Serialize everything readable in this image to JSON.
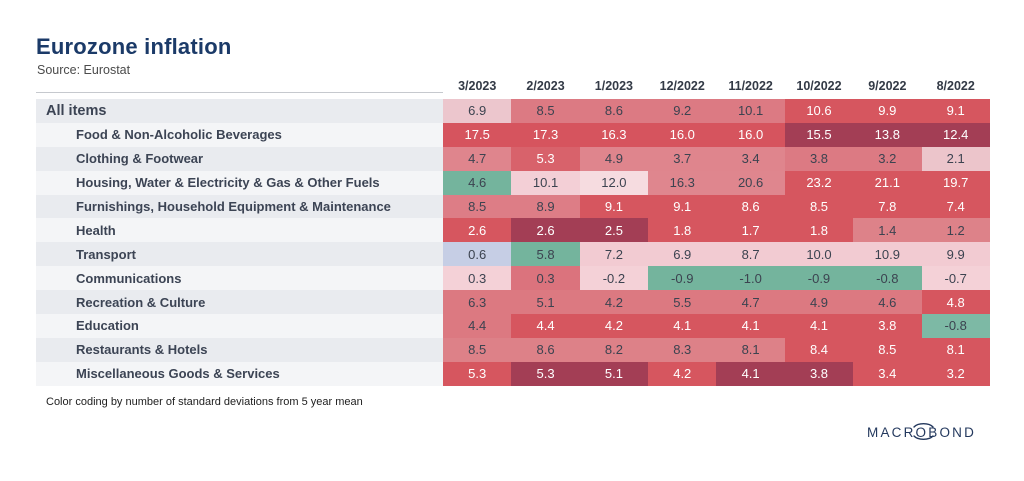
{
  "title": "Eurozone inflation",
  "source": "Source: Eurostat",
  "footnote": "Color coding by number of standard deviations from 5 year mean",
  "logo": {
    "text": "MACROBOND",
    "color": "#24395e"
  },
  "colors": {
    "text_dark": "#3c4350",
    "text_light": "#ffffff",
    "title": "#1b3a68"
  },
  "columns": [
    "3/2023",
    "2/2023",
    "1/2023",
    "12/2022",
    "11/2022",
    "10/2022",
    "9/2022",
    "8/2022"
  ],
  "rows": [
    {
      "label": "All items",
      "top": true,
      "values": [
        "6.9",
        "8.5",
        "8.6",
        "9.2",
        "10.1",
        "10.6",
        "9.9",
        "9.1"
      ],
      "bg": [
        "#ecc6cd",
        "#dc7a83",
        "#dc7a83",
        "#dc7a83",
        "#dc7a83",
        "#d6565f",
        "#d6565f",
        "#d6565f"
      ],
      "fg": [
        "d",
        "d",
        "d",
        "d",
        "d",
        "w",
        "w",
        "w"
      ]
    },
    {
      "label": "Food & Non-Alcoholic Beverages",
      "top": false,
      "values": [
        "17.5",
        "17.3",
        "16.3",
        "16.0",
        "16.0",
        "15.5",
        "13.8",
        "12.4"
      ],
      "bg": [
        "#d6545e",
        "#d6545e",
        "#d6545e",
        "#d6545e",
        "#d6545e",
        "#a33e55",
        "#a33e55",
        "#a33e55"
      ],
      "fg": [
        "w",
        "w",
        "w",
        "w",
        "w",
        "w",
        "w",
        "w"
      ]
    },
    {
      "label": "Clothing & Footwear",
      "top": false,
      "values": [
        "4.7",
        "5.3",
        "4.9",
        "3.7",
        "3.4",
        "3.8",
        "3.2",
        "2.1"
      ],
      "bg": [
        "#df858d",
        "#d8626b",
        "#df858d",
        "#df858d",
        "#df858d",
        "#dc7a83",
        "#dc7a83",
        "#ecc5cb"
      ],
      "fg": [
        "d",
        "w",
        "d",
        "d",
        "d",
        "d",
        "d",
        "d"
      ]
    },
    {
      "label": "Housing, Water & Electricity & Gas & Other Fuels",
      "top": false,
      "values": [
        "4.6",
        "10.1",
        "12.0",
        "16.3",
        "20.6",
        "23.2",
        "21.1",
        "19.7"
      ],
      "bg": [
        "#74b49d",
        "#f3cfd6",
        "#f6dce0",
        "#df868e",
        "#df868e",
        "#d6565f",
        "#d6565f",
        "#d6565f"
      ],
      "fg": [
        "d",
        "d",
        "d",
        "d",
        "d",
        "w",
        "w",
        "w"
      ]
    },
    {
      "label": "Furnishings, Household Equipment & Maintenance",
      "top": false,
      "values": [
        "8.5",
        "8.9",
        "9.1",
        "9.1",
        "8.6",
        "8.5",
        "7.8",
        "7.4"
      ],
      "bg": [
        "#dd7d86",
        "#dd7d86",
        "#d6565f",
        "#d6565f",
        "#d6565f",
        "#d6565f",
        "#d6565f",
        "#d6565f"
      ],
      "fg": [
        "d",
        "d",
        "w",
        "w",
        "w",
        "w",
        "w",
        "w"
      ]
    },
    {
      "label": "Health",
      "top": false,
      "values": [
        "2.6",
        "2.6",
        "2.5",
        "1.8",
        "1.7",
        "1.8",
        "1.4",
        "1.2"
      ],
      "bg": [
        "#d6565f",
        "#a33e55",
        "#a33e55",
        "#d6565f",
        "#d6565f",
        "#d6565f",
        "#dd8289",
        "#dd8289"
      ],
      "fg": [
        "w",
        "w",
        "w",
        "w",
        "w",
        "w",
        "d",
        "d"
      ]
    },
    {
      "label": "Transport",
      "top": false,
      "values": [
        "0.6",
        "5.8",
        "7.2",
        "6.9",
        "8.7",
        "10.0",
        "10.9",
        "9.9"
      ],
      "bg": [
        "#c6cee5",
        "#74b49d",
        "#f2cbd2",
        "#f2cbd2",
        "#f2cbd2",
        "#f2cbd2",
        "#f2cbd2",
        "#f2cbd2"
      ],
      "fg": [
        "d",
        "d",
        "d",
        "d",
        "d",
        "d",
        "d",
        "d"
      ]
    },
    {
      "label": "Communications",
      "top": false,
      "values": [
        "0.3",
        "0.3",
        "-0.2",
        "-0.9",
        "-1.0",
        "-0.9",
        "-0.8",
        "-0.7"
      ],
      "bg": [
        "#f4d1d7",
        "#db737d",
        "#f4d1d7",
        "#74b49d",
        "#74b49d",
        "#74b49d",
        "#74b49d",
        "#f4d1d7"
      ],
      "fg": [
        "d",
        "d",
        "d",
        "d",
        "d",
        "d",
        "d",
        "d"
      ]
    },
    {
      "label": "Recreation & Culture",
      "top": false,
      "values": [
        "6.3",
        "5.1",
        "4.2",
        "5.5",
        "4.7",
        "4.9",
        "4.6",
        "4.8"
      ],
      "bg": [
        "#dc7981",
        "#dc7981",
        "#dc7981",
        "#dc7981",
        "#dc7981",
        "#dc7981",
        "#dc7981",
        "#d6565f"
      ],
      "fg": [
        "d",
        "d",
        "d",
        "d",
        "d",
        "d",
        "d",
        "w"
      ]
    },
    {
      "label": "Education",
      "top": false,
      "values": [
        "4.4",
        "4.4",
        "4.2",
        "4.1",
        "4.1",
        "4.1",
        "3.8",
        "-0.8"
      ],
      "bg": [
        "#dc7981",
        "#d6565f",
        "#d6565f",
        "#d6565f",
        "#d6565f",
        "#d6565f",
        "#d6565f",
        "#7db9a5"
      ],
      "fg": [
        "d",
        "w",
        "w",
        "w",
        "w",
        "w",
        "w",
        "d"
      ]
    },
    {
      "label": "Restaurants & Hotels",
      "top": false,
      "values": [
        "8.5",
        "8.6",
        "8.2",
        "8.3",
        "8.1",
        "8.4",
        "8.5",
        "8.1"
      ],
      "bg": [
        "#dd8188",
        "#dd8188",
        "#dd8188",
        "#dd8188",
        "#dd8188",
        "#d6565f",
        "#d6565f",
        "#d6565f"
      ],
      "fg": [
        "d",
        "d",
        "d",
        "d",
        "d",
        "w",
        "w",
        "w"
      ]
    },
    {
      "label": "Miscellaneous Goods & Services",
      "top": false,
      "values": [
        "5.3",
        "5.3",
        "5.1",
        "4.2",
        "4.1",
        "3.8",
        "3.4",
        "3.2"
      ],
      "bg": [
        "#d6565f",
        "#a33e55",
        "#a33e55",
        "#d6565f",
        "#a33e55",
        "#a33e55",
        "#d6565f",
        "#d6565f"
      ],
      "fg": [
        "w",
        "w",
        "w",
        "w",
        "w",
        "w",
        "w",
        "w"
      ]
    }
  ],
  "chart_data": {
    "type": "heatmap",
    "title": "Eurozone inflation",
    "subtitle": "Source: Eurostat",
    "note": "Color coding by number of standard deviations from 5 year mean",
    "x": [
      "3/2023",
      "2/2023",
      "1/2023",
      "12/2022",
      "11/2022",
      "10/2022",
      "9/2022",
      "8/2022"
    ],
    "series": [
      {
        "name": "All items",
        "values": [
          6.9,
          8.5,
          8.6,
          9.2,
          10.1,
          10.6,
          9.9,
          9.1
        ]
      },
      {
        "name": "Food & Non-Alcoholic Beverages",
        "values": [
          17.5,
          17.3,
          16.3,
          16.0,
          16.0,
          15.5,
          13.8,
          12.4
        ]
      },
      {
        "name": "Clothing & Footwear",
        "values": [
          4.7,
          5.3,
          4.9,
          3.7,
          3.4,
          3.8,
          3.2,
          2.1
        ]
      },
      {
        "name": "Housing, Water & Electricity & Gas & Other Fuels",
        "values": [
          4.6,
          10.1,
          12.0,
          16.3,
          20.6,
          23.2,
          21.1,
          19.7
        ]
      },
      {
        "name": "Furnishings, Household Equipment & Maintenance",
        "values": [
          8.5,
          8.9,
          9.1,
          9.1,
          8.6,
          8.5,
          7.8,
          7.4
        ]
      },
      {
        "name": "Health",
        "values": [
          2.6,
          2.6,
          2.5,
          1.8,
          1.7,
          1.8,
          1.4,
          1.2
        ]
      },
      {
        "name": "Transport",
        "values": [
          0.6,
          5.8,
          7.2,
          6.9,
          8.7,
          10.0,
          10.9,
          9.9
        ]
      },
      {
        "name": "Communications",
        "values": [
          0.3,
          0.3,
          -0.2,
          -0.9,
          -1.0,
          -0.9,
          -0.8,
          -0.7
        ]
      },
      {
        "name": "Recreation & Culture",
        "values": [
          6.3,
          5.1,
          4.2,
          5.5,
          4.7,
          4.9,
          4.6,
          4.8
        ]
      },
      {
        "name": "Education",
        "values": [
          4.4,
          4.4,
          4.2,
          4.1,
          4.1,
          4.1,
          3.8,
          -0.8
        ]
      },
      {
        "name": "Restaurants & Hotels",
        "values": [
          8.5,
          8.6,
          8.2,
          8.3,
          8.1,
          8.4,
          8.5,
          8.1
        ]
      },
      {
        "name": "Miscellaneous Goods & Services",
        "values": [
          5.3,
          5.3,
          5.1,
          4.2,
          4.1,
          3.8,
          3.4,
          3.2
        ]
      }
    ],
    "legend": "none",
    "color_scale": "red = above 5-year mean (standard deviations), green = below"
  }
}
